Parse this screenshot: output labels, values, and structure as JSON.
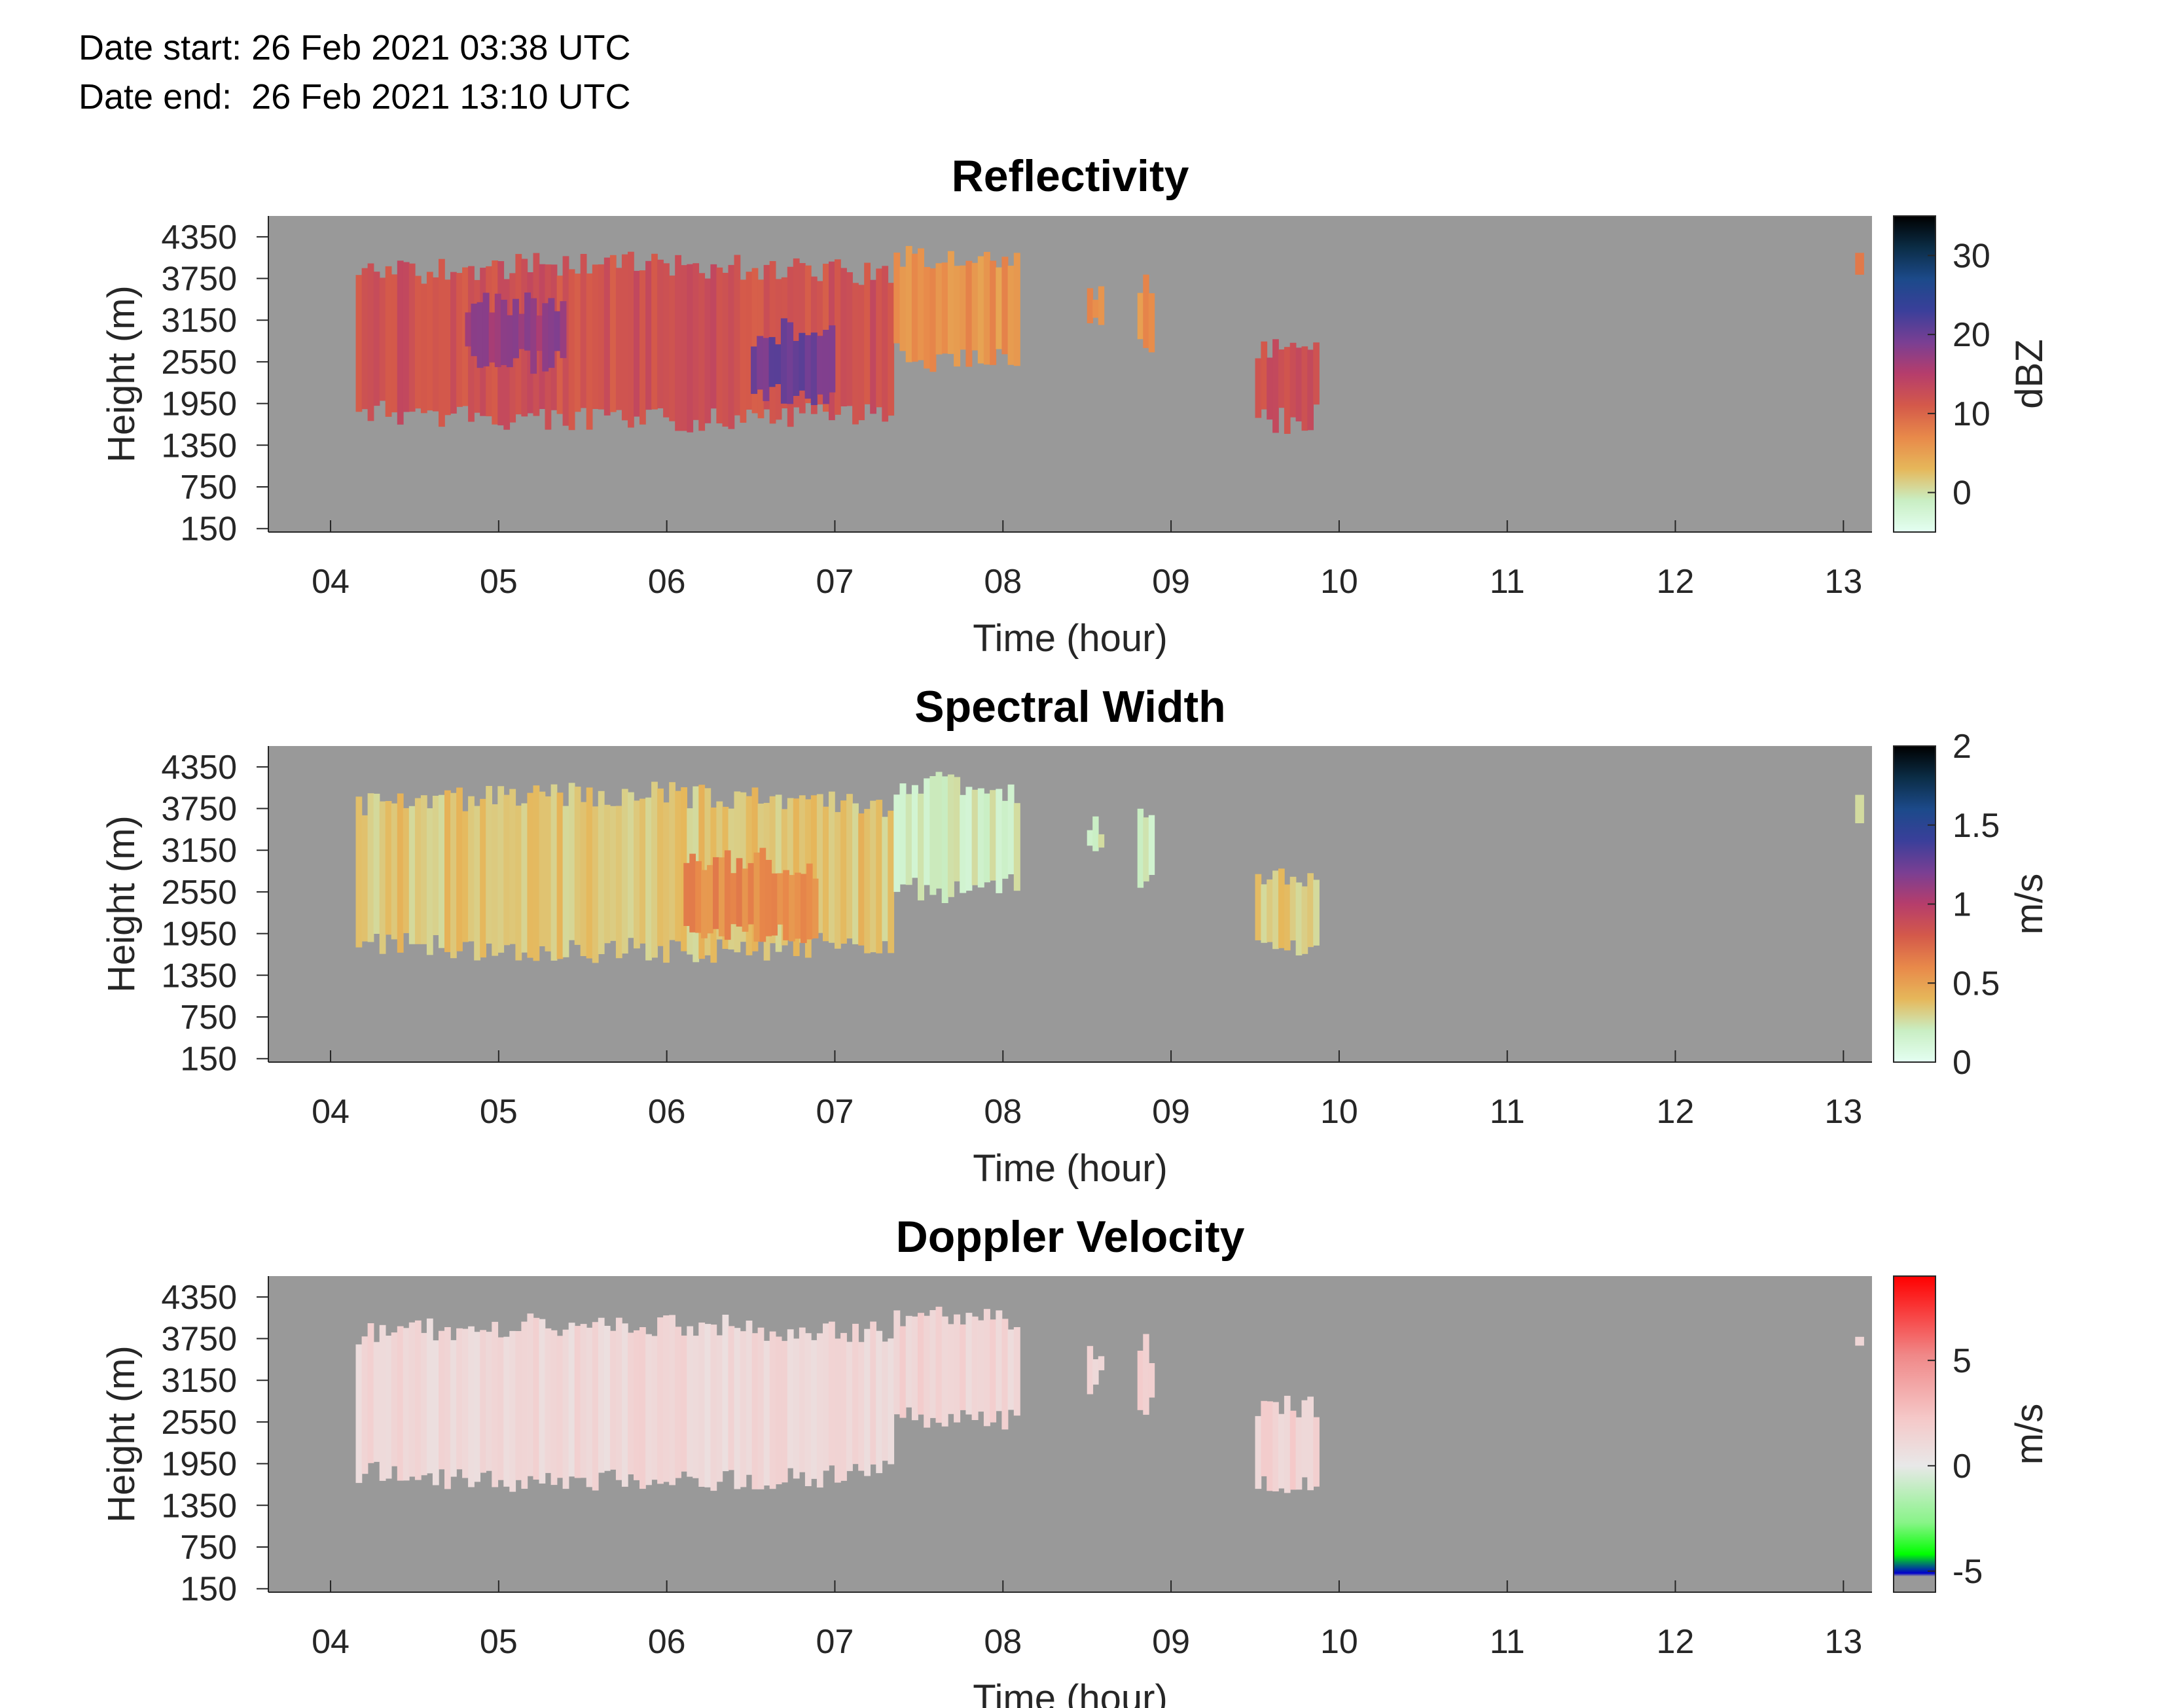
{
  "header": {
    "date_start": "Date start: 26 Feb 2021 03:38 UTC",
    "date_end": "Date end:  26 Feb 2021 13:10 UTC"
  },
  "chart_data": [
    {
      "type": "heatmap",
      "title": "Reflectivity",
      "xlabel": "Time (hour)",
      "ylabel": "Height (m)",
      "xlim": [
        3.63,
        13.17
      ],
      "ylim": [
        100,
        4650
      ],
      "x_ticks": [
        "04",
        "05",
        "06",
        "07",
        "08",
        "09",
        "10",
        "11",
        "12",
        "13"
      ],
      "y_ticks": [
        "150",
        "750",
        "1350",
        "1950",
        "2550",
        "3150",
        "3750",
        "4350"
      ],
      "colorbar": {
        "label": "dBZ",
        "ticks": [
          "0",
          "10",
          "20",
          "30"
        ],
        "range": [
          -5,
          35
        ],
        "colors": [
          "#e4fff2",
          "#c9eec3",
          "#e6b75a",
          "#e8894a",
          "#d4594a",
          "#b63d6b",
          "#7a3f93",
          "#3a3f9a",
          "#1c4a8a",
          "#0b2d46",
          "#000000"
        ]
      },
      "background_color": "#999999",
      "echo_regions": [
        {
          "t_start": 4.15,
          "t_end": 7.35,
          "h_bottom": 1700,
          "h_top": 3950,
          "value": 12
        },
        {
          "t_start": 4.8,
          "t_end": 5.4,
          "h_bottom": 2550,
          "h_top": 3400,
          "value": 17
        },
        {
          "t_start": 6.5,
          "t_end": 7.0,
          "h_bottom": 2050,
          "h_top": 3000,
          "value": 20
        },
        {
          "t_start": 7.35,
          "t_end": 8.1,
          "h_bottom": 2550,
          "h_top": 4100,
          "value": 6
        },
        {
          "t_start": 8.5,
          "t_end": 8.6,
          "h_bottom": 3100,
          "h_top": 3600,
          "value": 6
        },
        {
          "t_start": 8.8,
          "t_end": 8.9,
          "h_bottom": 2650,
          "h_top": 3650,
          "value": 6
        },
        {
          "t_start": 9.5,
          "t_end": 9.88,
          "h_bottom": 1700,
          "h_top": 2800,
          "value": 12
        },
        {
          "t_start": 13.07,
          "t_end": 13.12,
          "h_bottom": 3650,
          "h_top": 3950,
          "value": 8
        }
      ]
    },
    {
      "type": "heatmap",
      "title": "Spectral Width",
      "xlabel": "Time (hour)",
      "ylabel": "Height (m)",
      "xlim": [
        3.63,
        13.17
      ],
      "ylim": [
        100,
        4650
      ],
      "x_ticks": [
        "04",
        "05",
        "06",
        "07",
        "08",
        "09",
        "10",
        "11",
        "12",
        "13"
      ],
      "y_ticks": [
        "150",
        "750",
        "1350",
        "1950",
        "2550",
        "3150",
        "3750",
        "4350"
      ],
      "colorbar": {
        "label": "m/s",
        "ticks": [
          "0",
          "0.5",
          "1",
          "1.5",
          "2"
        ],
        "range": [
          0,
          2
        ],
        "colors": [
          "#e4fff2",
          "#c9eec3",
          "#e6b75a",
          "#e8894a",
          "#d4594a",
          "#b63d6b",
          "#7a3f93",
          "#3a3f9a",
          "#1c4a8a",
          "#0b2d46",
          "#000000"
        ]
      },
      "background_color": "#999999",
      "echo_regions": [
        {
          "t_start": 4.15,
          "t_end": 7.35,
          "h_bottom": 1700,
          "h_top": 3950,
          "value": 0.35
        },
        {
          "t_start": 6.1,
          "t_end": 6.9,
          "h_bottom": 1900,
          "h_top": 3000,
          "value": 0.6
        },
        {
          "t_start": 7.35,
          "t_end": 8.1,
          "h_bottom": 2550,
          "h_top": 4100,
          "value": 0.2
        },
        {
          "t_start": 8.5,
          "t_end": 8.6,
          "h_bottom": 3100,
          "h_top": 3600,
          "value": 0.2
        },
        {
          "t_start": 8.8,
          "t_end": 8.9,
          "h_bottom": 2650,
          "h_top": 3650,
          "value": 0.2
        },
        {
          "t_start": 9.5,
          "t_end": 9.88,
          "h_bottom": 1700,
          "h_top": 2800,
          "value": 0.35
        },
        {
          "t_start": 13.07,
          "t_end": 13.12,
          "h_bottom": 3650,
          "h_top": 3950,
          "value": 0.2
        }
      ]
    },
    {
      "type": "heatmap",
      "title": "Doppler Velocity",
      "xlabel": "Time (hour)",
      "ylabel": "Height (m)",
      "xlim": [
        3.63,
        13.17
      ],
      "ylim": [
        100,
        4650
      ],
      "x_ticks": [
        "04",
        "05",
        "06",
        "07",
        "08",
        "09",
        "10",
        "11",
        "12",
        "13"
      ],
      "y_ticks": [
        "150",
        "750",
        "1350",
        "1950",
        "2550",
        "3150",
        "3750",
        "4350"
      ],
      "colorbar": {
        "label": "m/s",
        "ticks": [
          "-5",
          "0",
          "5"
        ],
        "range": [
          -6,
          9
        ],
        "colors": [
          "#999999",
          "#999999",
          "#0000cc",
          "#00ff00",
          "#88f488",
          "#e8e8e8",
          "#f5c8c8",
          "#f08888",
          "#ff0000"
        ],
        "stops": [
          0,
          0.05,
          0.06,
          0.12,
          0.22,
          0.4,
          0.55,
          0.75,
          1
        ]
      },
      "background_color": "#999999",
      "echo_regions": [
        {
          "t_start": 4.15,
          "t_end": 7.35,
          "h_bottom": 1700,
          "h_top": 3950,
          "value": 1.2
        },
        {
          "t_start": 7.35,
          "t_end": 8.1,
          "h_bottom": 2550,
          "h_top": 4100,
          "value": 1.4
        },
        {
          "t_start": 8.5,
          "t_end": 8.6,
          "h_bottom": 3100,
          "h_top": 3600,
          "value": 1.4
        },
        {
          "t_start": 8.8,
          "t_end": 8.9,
          "h_bottom": 2650,
          "h_top": 3650,
          "value": 1.6
        },
        {
          "t_start": 9.5,
          "t_end": 9.88,
          "h_bottom": 1700,
          "h_top": 2800,
          "value": 1.6
        },
        {
          "t_start": 13.07,
          "t_end": 13.12,
          "h_bottom": 3650,
          "h_top": 3950,
          "value": 1.6
        }
      ]
    }
  ]
}
